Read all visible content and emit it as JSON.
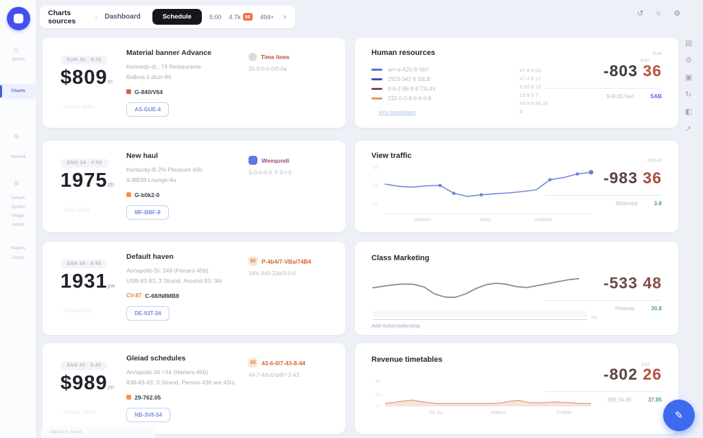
{
  "header": {
    "breadcrumb": {
      "root": "Charts sources",
      "sep": "›",
      "current": "Dashboard"
    },
    "schedule_button": "Schedule",
    "tab_time": "5:00",
    "tab_count": "4.7k",
    "tab_badge": "98",
    "tab_extra": "494+",
    "chevron": "∨",
    "icon_history": "↺",
    "icon_apps": "☼",
    "icon_settings": "⚙"
  },
  "sidebar": {
    "search_icon": "◎",
    "search_label": "Search",
    "active_item": "Charts",
    "gear": "⚙",
    "section1_label": "Network",
    "section2_items": [
      "Default",
      "System",
      "Widget",
      "Admin"
    ],
    "section3_items": [
      "Reports",
      "Library"
    ]
  },
  "metric_cards": [
    {
      "pill": "SUN 30 · 9:30",
      "value": "$809",
      "suffix": "m",
      "ghost": "Annual Rate",
      "title": "Material banner Advance",
      "desc1": "Kennedy-dr., 74 Restaurante",
      "desc2": "Balboa-1 dozr-84",
      "status_code": "G-840/V64",
      "button": "AS-GUE-4",
      "side_label": "Time lines",
      "side_sub": "35-0-0-0-0/0-0a"
    },
    {
      "pill": "GNU 24 · 4:50",
      "value": "1975",
      "suffix": "zb",
      "ghost": "Total Sales",
      "title": "New haul",
      "desc1": "Kentucky-B 2% Pleasure 45b",
      "desc2": "S-BB39 Lounge-4u",
      "status_code": "G-b0k2-0",
      "button": "MF-BBF-8",
      "side_label": "Weequndi",
      "side_sub": "S-0-b-0-4, F-0-r-0"
    },
    {
      "pill": "SAN 34 · 8:45",
      "value": "1931",
      "suffix": "yw",
      "ghost": "Orders Rate",
      "title": "Default haven",
      "desc1": "Annapolis-St. 249 (Ferrars-45b)",
      "desc2": "USB-83-93, 3 Strand, Around-93; 34r",
      "status_tag": "CV-87",
      "status_code": "C-68/N8MB8",
      "button": "DE-93T-34",
      "side_badge": "82",
      "side_label": "P-4b4/7-VBa/74B4",
      "side_sub": "34% 840-23d/3-0-0"
    },
    {
      "pill": "SAN 30 · 8:45",
      "value": "$989",
      "suffix": "zn",
      "ghost": "Annual Sales",
      "title": "Gleiad schedules",
      "desc1": "Annapolis-36 / 64 (Harters-45b)",
      "desc2": "838-83-93, 3 Strand, Person-436 are 43rs",
      "status_code": "29-762.05",
      "button": "NB-3V8-54",
      "side_badge": "83",
      "side_label": "43-6-0/7-43-8-44",
      "side_sub": "44-7-4/b-0-b/87-2-43"
    }
  ],
  "panels": {
    "resources": {
      "title": "Human resources",
      "tiny_top": "dras",
      "legend": [
        {
          "label": "am-a-A20-B-9b7",
          "color": "#5b6fd6"
        },
        {
          "label": "2923-342-9 33LB",
          "color": "#3d4fc0"
        },
        {
          "label": "9-b-2-98-9-8 73L43",
          "color": "#7e4852"
        },
        {
          "label": "232-0-0-9-0-9-0-8",
          "color": "#e09a62"
        }
      ],
      "numbers": [
        "47 8 8 02",
        "47 4 8 17",
        "8 82 8 16",
        "23 8 8 7",
        "49 8 8 85.26",
        "8"
      ],
      "link": "View breakdown",
      "value_tiny": "drati",
      "value_main": "-803",
      "value_cents": "36",
      "foot_gray": "9-Brd5.5ed",
      "foot_accent": "SAB"
    },
    "traffic": {
      "title": "View traffic",
      "value_tiny": "409.43",
      "value_main": "-983",
      "value_cents": "36",
      "foot_gray": "Widened",
      "foot_accent": "3-8"
    },
    "marketing": {
      "title": "Class Marketing",
      "value_tiny": "",
      "value_main": "-533",
      "value_cents": "48",
      "foot_gray": "Prearep",
      "foot_accent": "30.8",
      "axis_mark": "ma",
      "footer_link": "Add-Subscriptionship"
    },
    "revenue": {
      "title": "Revenue timetables",
      "tiny_top": "b43",
      "value_main": "-802",
      "value_cents": "26",
      "foot_gray": "399.34.85",
      "foot_accent": "37.85"
    }
  },
  "chart_data": [
    {
      "type": "line",
      "title": "View traffic",
      "ylim": [
        10,
        30
      ],
      "yticks": [
        "30",
        "20",
        "10"
      ],
      "xticklabels": [
        "markets",
        "sales",
        "markets"
      ],
      "values": [
        21.2,
        20.2,
        19.8,
        20.4,
        20.6,
        17.0,
        15.6,
        16.3,
        16.8,
        17.2,
        17.8,
        18.6,
        23.2,
        24.2,
        25.8,
        26.6
      ],
      "marker_indices": [
        4,
        5,
        7,
        12,
        14,
        15
      ],
      "color": "#7388d9",
      "grid": false,
      "legend": "none"
    },
    {
      "type": "line",
      "title": "Class Marketing",
      "ylim": [
        0,
        100
      ],
      "yticks": [],
      "xticklabels": [],
      "values": [
        46,
        50,
        54,
        56,
        55,
        48,
        30,
        22,
        21,
        30,
        44,
        54,
        58,
        55,
        49,
        47,
        52,
        57,
        62,
        67,
        70
      ],
      "marker_indices": [],
      "color": "#8b8b92",
      "grid": false,
      "legend": "none"
    },
    {
      "type": "area",
      "title": "Revenue timetables",
      "ylim": [
        0,
        40
      ],
      "yticks": [
        "40",
        "20",
        "0"
      ],
      "xticklabels": [
        "04. Au",
        "Arebus",
        "In-brite"
      ],
      "values": [
        2,
        4,
        7,
        9,
        6,
        3,
        2,
        2,
        2,
        2,
        2,
        2,
        2,
        3,
        7,
        8,
        4,
        3,
        4,
        5,
        4,
        3,
        2,
        2
      ],
      "marker_indices": [],
      "color": "#d98a6a",
      "fill": "#f3d9cd",
      "grid": false,
      "legend": "none"
    }
  ],
  "rail_icons": [
    "▤",
    "⚙",
    "▣",
    "↻",
    "◧",
    "↗"
  ],
  "fab_glyph": "✎",
  "bottom_tab": "Ubd-park, noted"
}
